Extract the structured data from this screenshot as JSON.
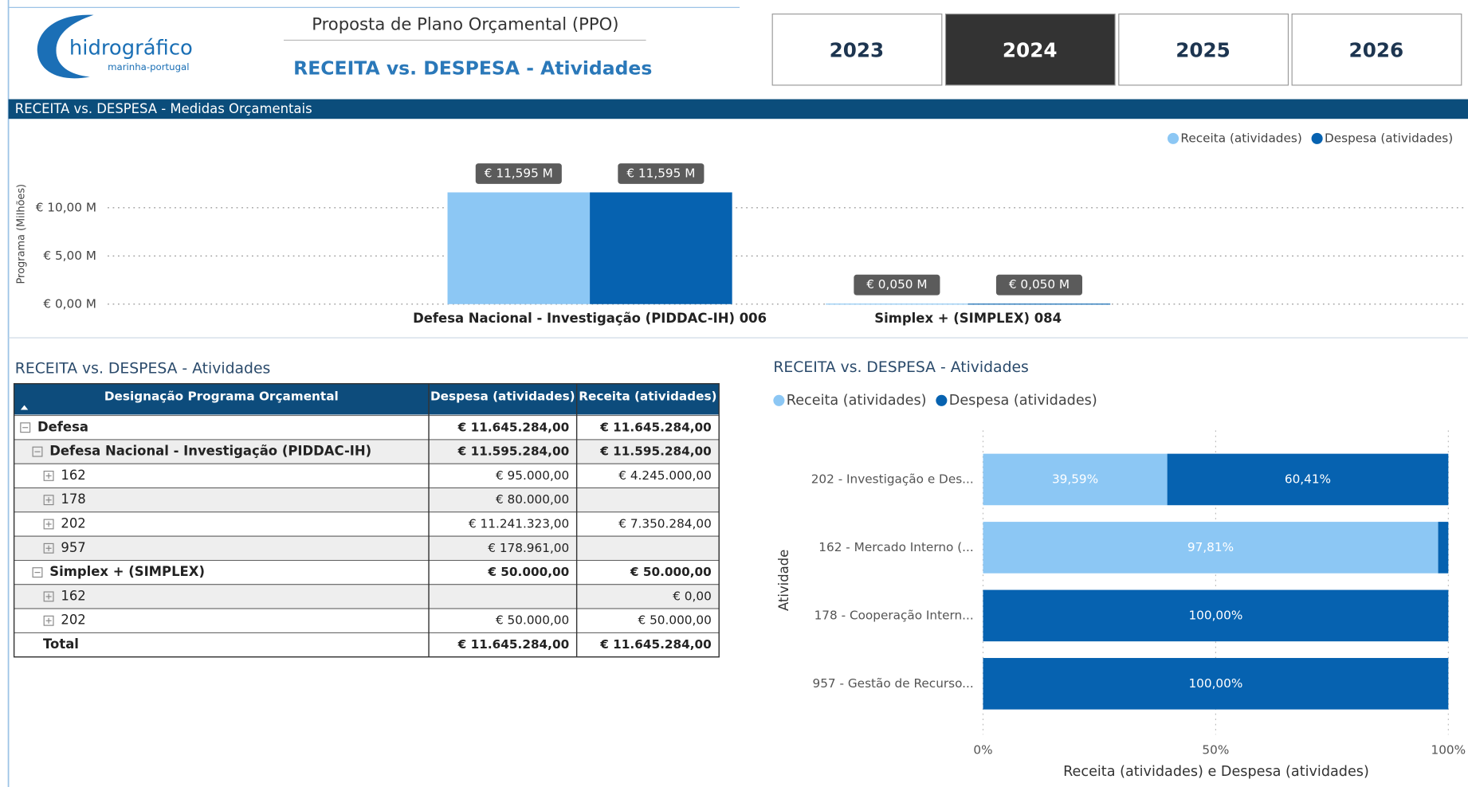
{
  "header": {
    "logo": "hidrográfico",
    "logo_sub": "marinha-portugal",
    "title": "Proposta de Plano Orçamental (PPO)",
    "subtitle": "RECEITA vs. DESPESA - Atividades"
  },
  "years": {
    "options": [
      "2023",
      "2024",
      "2025",
      "2026"
    ],
    "selected_index": 1
  },
  "section_title": "RECEITA vs. DESPESA - Medidas Orçamentais",
  "chart_data": [
    {
      "type": "bar",
      "ylabel": "Programa (Milhões)",
      "categories": [
        "Defesa Nacional - Investigação (PIDDAC-IH) 006",
        "Simplex + (SIMPLEX) 084"
      ],
      "series": [
        {
          "name": "Receita (atividades)",
          "color": "#8cc7f4",
          "values": [
            11.595,
            0.05
          ],
          "value_labels": [
            "€ 11,595 M",
            "€ 0,050 M"
          ]
        },
        {
          "name": "Despesa (atividades)",
          "color": "#0662b0",
          "values": [
            11.595,
            0.05
          ],
          "value_labels": [
            "€ 11,595 M",
            "€ 0,050 M"
          ]
        }
      ],
      "ylim": [
        0,
        12
      ],
      "yticks": [
        {
          "value": 0,
          "label": "€ 0,00 M"
        },
        {
          "value": 5,
          "label": "€ 5,00 M"
        },
        {
          "value": 10,
          "label": "€ 10,00 M"
        }
      ],
      "grid": true,
      "legend": "top-right"
    },
    {
      "type": "stacked_bar_100",
      "title": "RECEITA vs. DESPESA - Atividades",
      "ylabel": "Atividade",
      "xlabel": "Receita (atividades) e Despesa (atividades)",
      "categories": [
        "202 - Investigação e Des...",
        "162 - Mercado Interno (...",
        "178 - Cooperação Intern...",
        "957 - Gestão de Recurso..."
      ],
      "series": [
        {
          "name": "Receita (atividades)",
          "color": "#8cc7f4",
          "values": [
            39.59,
            97.81,
            0,
            0
          ],
          "value_labels": [
            "39,59%",
            "97,81%",
            null,
            null
          ]
        },
        {
          "name": "Despesa (atividades)",
          "color": "#0662b0",
          "values": [
            60.41,
            2.19,
            100,
            100
          ],
          "value_labels": [
            "60,41%",
            null,
            "100,00%",
            "100,00%"
          ]
        }
      ],
      "xlim": [
        0,
        100
      ],
      "xticks": [
        {
          "value": 0,
          "label": "0%"
        },
        {
          "value": 50,
          "label": "50%"
        },
        {
          "value": 100,
          "label": "100%"
        }
      ],
      "grid": true,
      "legend": "top-left"
    }
  ],
  "table": {
    "title": "RECEITA vs. DESPESA - Atividades",
    "columns": [
      "Designação Programa Orçamental",
      "Despesa (atividades)",
      "Receita (atividades)"
    ],
    "rows": [
      {
        "label": "Defesa",
        "despesa": "€ 11.645.284,00",
        "receita": "€ 11.645.284,00",
        "level": 0
      },
      {
        "label": "Defesa Nacional - Investigação (PIDDAC-IH)",
        "despesa": "€ 11.595.284,00",
        "receita": "€ 11.595.284,00",
        "level": 1
      },
      {
        "label": "162",
        "despesa": "€ 95.000,00",
        "receita": "€ 4.245.000,00",
        "level": 2
      },
      {
        "label": "178",
        "despesa": "€ 80.000,00",
        "receita": null,
        "level": 2
      },
      {
        "label": "202",
        "despesa": "€ 11.241.323,00",
        "receita": "€ 7.350.284,00",
        "level": 2
      },
      {
        "label": "957",
        "despesa": "€ 178.961,00",
        "receita": null,
        "level": 2
      },
      {
        "label": "Simplex + (SIMPLEX)",
        "despesa": "€ 50.000,00",
        "receita": "€ 50.000,00",
        "level": 1
      },
      {
        "label": "162",
        "despesa": null,
        "receita": "€ 0,00",
        "level": 2
      },
      {
        "label": "202",
        "despesa": "€ 50.000,00",
        "receita": "€ 50.000,00",
        "level": 2
      }
    ],
    "total": {
      "label": "Total",
      "despesa": "€ 11.645.284,00",
      "receita": "€ 11.645.284,00"
    }
  }
}
